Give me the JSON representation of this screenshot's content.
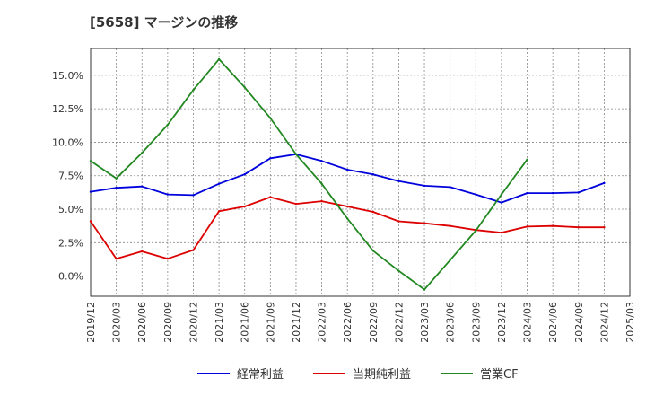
{
  "chart_data": {
    "type": "line",
    "title": "[5658]  マージンの推移",
    "x": [
      "2019/12",
      "2020/03",
      "2020/06",
      "2020/09",
      "2020/12",
      "2021/03",
      "2021/06",
      "2021/09",
      "2021/12",
      "2022/03",
      "2022/06",
      "2022/09",
      "2022/12",
      "2023/03",
      "2023/06",
      "2023/09",
      "2023/12",
      "2024/03",
      "2024/06",
      "2024/09",
      "2024/12",
      "2025/03"
    ],
    "y_ticks": [
      "0.0%",
      "2.5%",
      "5.0%",
      "7.5%",
      "10.0%",
      "12.5%",
      "15.0%"
    ],
    "ylim": [
      -1.5,
      17.0
    ],
    "grid": true,
    "legend_position": "bottom",
    "series": [
      {
        "name": "経常利益",
        "color": "#0000dd",
        "values": [
          6.3,
          6.6,
          6.7,
          6.1,
          6.05,
          6.9,
          7.6,
          8.8,
          9.1,
          8.6,
          7.95,
          7.6,
          7.1,
          6.75,
          6.65,
          6.1,
          5.5,
          6.2,
          6.2,
          6.25,
          6.95,
          null
        ]
      },
      {
        "name": "当期純利益",
        "color": "#dd0000",
        "values": [
          4.1,
          1.3,
          1.85,
          1.3,
          1.95,
          4.85,
          5.2,
          5.9,
          5.4,
          5.6,
          5.2,
          4.8,
          4.1,
          3.95,
          3.75,
          3.45,
          3.25,
          3.7,
          3.75,
          3.65,
          3.65,
          null
        ]
      },
      {
        "name": "営業CF",
        "color": "#228822",
        "values": [
          8.6,
          7.3,
          9.2,
          11.3,
          13.9,
          16.2,
          14.1,
          11.8,
          9.1,
          6.9,
          4.3,
          1.9,
          0.4,
          -1.0,
          1.2,
          3.4,
          6.1,
          8.7,
          null,
          null,
          null,
          null
        ]
      }
    ]
  }
}
